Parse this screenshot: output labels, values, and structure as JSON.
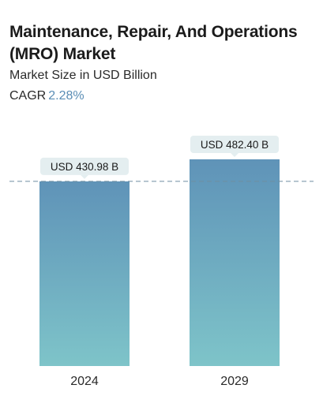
{
  "header": {
    "title": "Maintenance, Repair, And Operations (MRO) Market",
    "subtitle": "Market Size in USD Billion",
    "cagr_label": "CAGR",
    "cagr_value": "2.28%"
  },
  "colors": {
    "bar_top": "#5f93b8",
    "bar_bottom": "#7ec4c9",
    "label_bg": "#e4eef0",
    "cagr": "#5a8db5",
    "dashed_line": "#6f8ea0"
  },
  "chart_data": {
    "type": "bar",
    "title": "Maintenance, Repair, And Operations (MRO) Market",
    "subtitle": "Market Size in USD Billion",
    "categories": [
      "2024",
      "2029"
    ],
    "values": [
      430.98,
      482.4
    ],
    "data_labels": [
      "USD 430.98 B",
      "USD 482.40 B"
    ],
    "unit": "USD Billion",
    "reference_line": 430.98,
    "grid": false,
    "legend": "none"
  }
}
